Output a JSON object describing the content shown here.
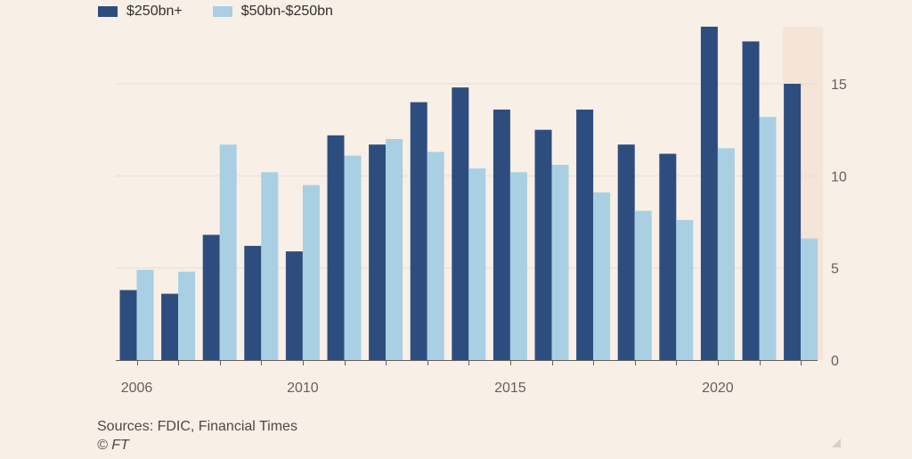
{
  "chart_data": {
    "type": "bar",
    "categories": [
      "2006",
      "2007",
      "2008",
      "2009",
      "2010",
      "2011",
      "2012",
      "2013",
      "2014",
      "2015",
      "2016",
      "2017",
      "2018",
      "2019",
      "2020",
      "2021",
      "2022"
    ],
    "x_tick_labels": [
      "2006",
      "2010",
      "2015",
      "2020"
    ],
    "series": [
      {
        "name": "$250bn+",
        "color": "#2e4d7f",
        "values": [
          3.8,
          3.6,
          6.8,
          6.2,
          5.9,
          12.2,
          11.7,
          14.0,
          14.8,
          13.6,
          12.5,
          13.6,
          11.7,
          11.2,
          18.1,
          17.3,
          15.0
        ]
      },
      {
        "name": "$50bn-$250bn",
        "color": "#a9cfe3",
        "values": [
          4.9,
          4.8,
          11.7,
          10.2,
          9.5,
          11.1,
          12.0,
          11.3,
          10.4,
          10.2,
          10.6,
          9.1,
          8.1,
          7.6,
          11.5,
          13.2,
          6.6
        ]
      }
    ],
    "y_ticks": [
      0,
      5,
      10,
      15
    ],
    "ylim": [
      0,
      18
    ],
    "y_axis_side": "right",
    "grid": true,
    "legend_position": "top-left",
    "highlight_category": "2022",
    "highlight_color": "#f5e4d8",
    "title": "",
    "xlabel": "",
    "ylabel": ""
  },
  "footer": {
    "sources": "Sources: FDIC, Financial Times",
    "copyright": "© FT"
  },
  "colors": {
    "background": "#f8efe7",
    "gridline": "#e6ddd4",
    "axis": "#66605c",
    "tick_text": "#66605c"
  }
}
